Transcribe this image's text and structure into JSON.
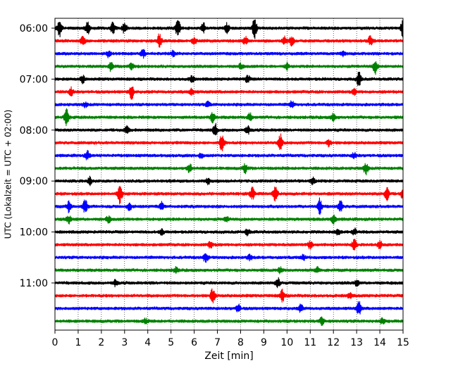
{
  "chart_data": {
    "type": "line",
    "title": "",
    "xlabel": "Zeit  [min]",
    "ylabel": "UTC (Lokalzeit = UTC + 02:00)",
    "xlim": [
      0,
      15
    ],
    "x_ticks": [
      "0",
      "1",
      "2",
      "3",
      "4",
      "5",
      "6",
      "7",
      "8",
      "9",
      "10",
      "11",
      "12",
      "13",
      "14",
      "15"
    ],
    "y_ticks": [
      "06:00",
      "07:00",
      "08:00",
      "09:00",
      "10:00",
      "11:00"
    ],
    "grid": "vertical dotted",
    "trace_colors": [
      "#000000",
      "#ff0000",
      "#0000ff",
      "#008000"
    ],
    "traces": [
      {
        "start": "06:00",
        "color": "#000000",
        "events": [
          [
            0.2,
            1.3
          ],
          [
            1.4,
            1.0
          ],
          [
            2.5,
            0.9
          ],
          [
            3.0,
            0.9
          ],
          [
            5.3,
            1.5
          ],
          [
            6.4,
            0.8
          ],
          [
            7.4,
            0.8
          ],
          [
            8.6,
            1.7
          ],
          [
            15.0,
            1.4
          ]
        ]
      },
      {
        "start": "06:15",
        "color": "#ff0000",
        "events": [
          [
            1.2,
            0.7
          ],
          [
            4.5,
            1.0
          ],
          [
            6.0,
            0.5
          ],
          [
            8.2,
            0.6
          ],
          [
            9.9,
            0.6
          ],
          [
            10.2,
            0.7
          ],
          [
            13.6,
            0.8
          ]
        ]
      },
      {
        "start": "06:30",
        "color": "#0000ff",
        "events": [
          [
            2.3,
            0.5
          ],
          [
            3.8,
            0.6
          ],
          [
            5.1,
            0.5
          ],
          [
            12.4,
            0.4
          ]
        ]
      },
      {
        "start": "06:45",
        "color": "#008000",
        "events": [
          [
            2.4,
            0.7
          ],
          [
            3.3,
            0.5
          ],
          [
            8.0,
            0.4
          ],
          [
            10.0,
            0.5
          ],
          [
            13.8,
            1.1
          ]
        ]
      },
      {
        "start": "07:00",
        "color": "#000000",
        "events": [
          [
            1.2,
            0.6
          ],
          [
            5.9,
            0.5
          ],
          [
            8.3,
            0.6
          ],
          [
            13.1,
            1.1
          ]
        ]
      },
      {
        "start": "07:15",
        "color": "#ff0000",
        "events": [
          [
            0.7,
            0.6
          ],
          [
            3.3,
            1.1
          ],
          [
            5.9,
            0.5
          ],
          [
            12.9,
            0.4
          ]
        ]
      },
      {
        "start": "07:30",
        "color": "#0000ff",
        "events": [
          [
            1.3,
            0.4
          ],
          [
            6.6,
            0.4
          ],
          [
            10.2,
            0.5
          ]
        ]
      },
      {
        "start": "07:45",
        "color": "#008000",
        "events": [
          [
            0.5,
            1.4
          ],
          [
            6.8,
            0.8
          ],
          [
            8.4,
            0.6
          ],
          [
            12.0,
            0.6
          ]
        ]
      },
      {
        "start": "08:00",
        "color": "#000000",
        "events": [
          [
            3.1,
            0.5
          ],
          [
            6.9,
            1.0
          ],
          [
            8.3,
            0.6
          ]
        ]
      },
      {
        "start": "08:15",
        "color": "#ff0000",
        "events": [
          [
            7.2,
            1.6
          ],
          [
            9.7,
            1.4
          ],
          [
            11.8,
            0.5
          ]
        ]
      },
      {
        "start": "08:30",
        "color": "#0000ff",
        "events": [
          [
            1.4,
            0.7
          ],
          [
            6.3,
            0.4
          ],
          [
            12.9,
            0.4
          ]
        ]
      },
      {
        "start": "08:45",
        "color": "#008000",
        "events": [
          [
            5.8,
            0.8
          ],
          [
            8.2,
            0.7
          ],
          [
            13.4,
            1.0
          ]
        ]
      },
      {
        "start": "09:00",
        "color": "#000000",
        "events": [
          [
            1.5,
            0.6
          ],
          [
            6.6,
            0.5
          ],
          [
            11.1,
            0.5
          ]
        ]
      },
      {
        "start": "09:15",
        "color": "#ff0000",
        "events": [
          [
            2.8,
            1.5
          ],
          [
            8.5,
            0.9
          ],
          [
            9.5,
            1.4
          ],
          [
            14.3,
            1.3
          ],
          [
            15.0,
            0.8
          ]
        ]
      },
      {
        "start": "09:30",
        "color": "#0000ff",
        "events": [
          [
            0.6,
            0.8
          ],
          [
            1.3,
            1.1
          ],
          [
            3.2,
            0.6
          ],
          [
            4.6,
            0.6
          ],
          [
            11.4,
            1.2
          ],
          [
            12.3,
            1.0
          ]
        ]
      },
      {
        "start": "09:45",
        "color": "#008000",
        "events": [
          [
            0.6,
            0.6
          ],
          [
            2.3,
            0.5
          ],
          [
            7.4,
            0.4
          ],
          [
            12.0,
            0.7
          ]
        ]
      },
      {
        "start": "10:00",
        "color": "#000000",
        "events": [
          [
            4.6,
            0.4
          ],
          [
            8.3,
            0.5
          ],
          [
            12.2,
            0.5
          ],
          [
            12.9,
            0.5
          ]
        ]
      },
      {
        "start": "10:15",
        "color": "#ff0000",
        "events": [
          [
            6.7,
            0.5
          ],
          [
            11.0,
            0.6
          ],
          [
            12.9,
            0.8
          ],
          [
            14.0,
            0.6
          ]
        ]
      },
      {
        "start": "10:30",
        "color": "#0000ff",
        "events": [
          [
            6.5,
            0.8
          ],
          [
            8.4,
            0.4
          ],
          [
            10.7,
            0.4
          ]
        ]
      },
      {
        "start": "10:45",
        "color": "#008000",
        "events": [
          [
            5.2,
            0.4
          ],
          [
            9.7,
            0.4
          ],
          [
            11.3,
            0.6
          ]
        ]
      },
      {
        "start": "11:00",
        "color": "#000000",
        "events": [
          [
            2.6,
            0.4
          ],
          [
            9.6,
            0.8
          ],
          [
            13.0,
            0.4
          ]
        ]
      },
      {
        "start": "11:15",
        "color": "#ff0000",
        "events": [
          [
            6.8,
            1.2
          ],
          [
            9.8,
            1.0
          ],
          [
            12.7,
            0.4
          ]
        ]
      },
      {
        "start": "11:30",
        "color": "#0000ff",
        "events": [
          [
            7.9,
            0.6
          ],
          [
            10.6,
            0.6
          ],
          [
            13.1,
            1.1
          ]
        ]
      },
      {
        "start": "11:45",
        "color": "#008000",
        "events": [
          [
            3.9,
            0.4
          ],
          [
            11.5,
            0.6
          ],
          [
            14.1,
            0.4
          ]
        ]
      }
    ]
  }
}
